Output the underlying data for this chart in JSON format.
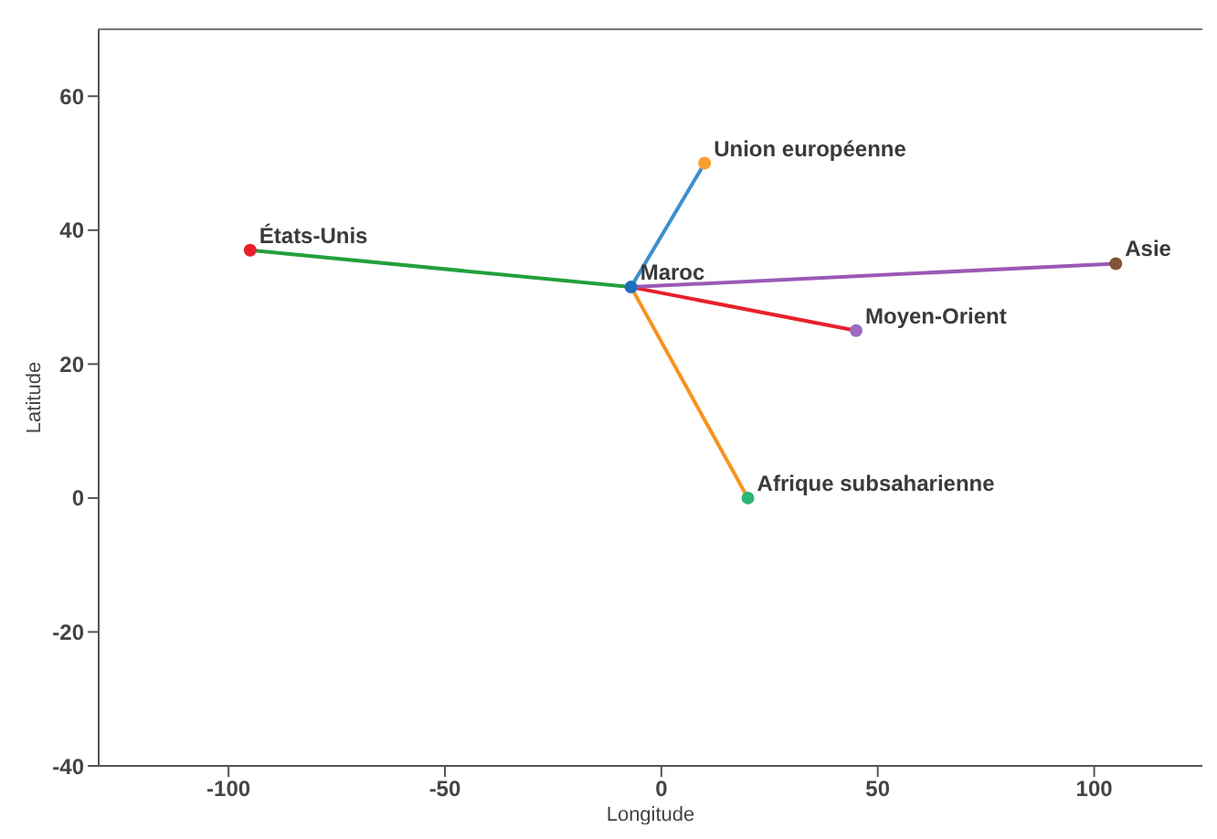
{
  "chart_data": {
    "type": "scatter",
    "xlabel": "Longitude",
    "ylabel": "Latitude",
    "xlim": [
      -130,
      125
    ],
    "ylim": [
      -40,
      70
    ],
    "xticks": [
      -100,
      -50,
      0,
      50,
      100
    ],
    "yticks": [
      -40,
      -20,
      0,
      20,
      40,
      60
    ],
    "grid": false,
    "legend": false,
    "series": [
      {
        "type": "line",
        "marker": "none",
        "color": "#3d8fcc",
        "x": [
          -7,
          10
        ],
        "values": [
          31.5,
          50
        ]
      },
      {
        "type": "line",
        "marker": "none",
        "color": "#f7931e",
        "x": [
          -7,
          20
        ],
        "values": [
          31.5,
          0
        ]
      },
      {
        "type": "line",
        "marker": "none",
        "color": "#22a03c",
        "x": [
          -7,
          -95
        ],
        "values": [
          31.5,
          37
        ]
      },
      {
        "type": "line",
        "marker": "none",
        "color": "#e8202a",
        "x": [
          -7,
          45
        ],
        "values": [
          31.5,
          25
        ]
      },
      {
        "type": "line",
        "marker": "none",
        "color": "#9b59b6",
        "x": [
          -7,
          105
        ],
        "values": [
          31.5,
          35
        ]
      },
      {
        "marker": "circle",
        "x": [
          -7,
          10,
          -95,
          105,
          45,
          20
        ],
        "values": [
          31.5,
          50,
          37,
          35,
          25,
          0
        ],
        "colors": [
          "#1f6fc0",
          "#f7a030",
          "#e8202a",
          "#7f5437",
          "#9b6bbf",
          "#2bb673"
        ]
      }
    ],
    "annotations": [
      {
        "text": "Maroc",
        "x": -7,
        "y": 31.5
      },
      {
        "text": "Union européenne",
        "x": 10,
        "y": 50
      },
      {
        "text": "États-Unis",
        "x": -95,
        "y": 37
      },
      {
        "text": "Asie",
        "x": 105,
        "y": 35
      },
      {
        "text": "Moyen-Orient",
        "x": 45,
        "y": 25
      },
      {
        "text": "Afrique subsaharienne",
        "x": 20,
        "y": 0
      }
    ]
  }
}
